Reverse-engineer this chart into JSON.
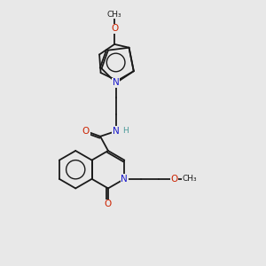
{
  "background_color": "#e8e8e8",
  "bond_color": "#1a1a1a",
  "nitrogen_color": "#1a1acc",
  "oxygen_color": "#cc2200",
  "hydrogen_color": "#4a9a9a",
  "fig_width": 3.0,
  "fig_height": 3.0,
  "dpi": 100,
  "xlim": [
    0,
    10
  ],
  "ylim": [
    0,
    10
  ]
}
